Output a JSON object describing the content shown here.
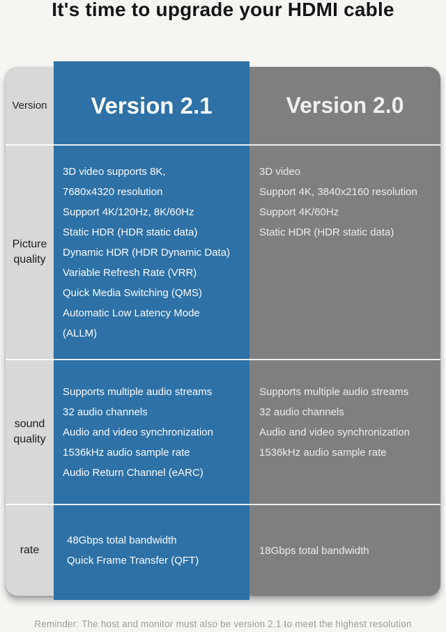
{
  "title": "It's time to upgrade your HDMI cable",
  "footer_note": "Reminder: The host and monitor must also be version 2.1 to meet the highest resolution",
  "colors": {
    "v21_blue": "#2d71a6",
    "v20_gray": "#7f7f7f",
    "label_column_gray": "#d8d8d8",
    "page_background": "#f6f5f2",
    "separator_white": "#ffffff",
    "footer_text": "#9b9b9b"
  },
  "table": {
    "header": {
      "label": "Version",
      "v21": "Version 2.1",
      "v20": "Version 2.0"
    },
    "rows": {
      "picture": {
        "label_lines": [
          "Picture",
          "quality"
        ],
        "v21_lines": [
          "3D video supports 8K,",
          "7680x4320 resolution",
          "Support 4K/120Hz, 8K/60Hz",
          "Static HDR (HDR static data)",
          "Dynamic HDR (HDR Dynamic Data)",
          "Variable Refresh Rate (VRR)",
          "Quick Media Switching (QMS)",
          "Automatic Low Latency Mode",
          "(ALLM)"
        ],
        "v20_lines": [
          "3D video",
          "Support 4K, 3840x2160 resolution",
          "Support 4K/60Hz",
          "Static HDR (HDR static data)"
        ]
      },
      "sound": {
        "label_lines": [
          "sound",
          "quality"
        ],
        "v21_lines": [
          "Supports multiple audio streams",
          "32 audio channels",
          "Audio and video synchronization",
          "1536kHz audio sample rate",
          "Audio Return Channel (eARC)"
        ],
        "v20_lines": [
          "Supports multiple audio streams",
          "32 audio channels",
          "Audio and video synchronization",
          "1536kHz audio sample rate"
        ]
      },
      "rate": {
        "label_lines": [
          "rate"
        ],
        "v21_lines": [
          "48Gbps total bandwidth",
          "Quick Frame Transfer (QFT)"
        ],
        "v20_lines": [
          "18Gbps total bandwidth"
        ]
      }
    }
  },
  "chart_data": {
    "type": "table",
    "title": "It's time to upgrade your HDMI cable",
    "columns": [
      "Version",
      "Version 2.1",
      "Version 2.0"
    ],
    "rows": [
      {
        "feature": "Picture quality",
        "version_2_1": "3D video supports 8K, 7680x4320 resolution; Support 4K/120Hz, 8K/60Hz; Static HDR (HDR static data); Dynamic HDR (HDR Dynamic Data); Variable Refresh Rate (VRR); Quick Media Switching (QMS); Automatic Low Latency Mode (ALLM)",
        "version_2_0": "3D video; Support 4K, 3840x2160 resolution; Support 4K/60Hz; Static HDR (HDR static data)"
      },
      {
        "feature": "sound quality",
        "version_2_1": "Supports multiple audio streams; 32 audio channels; Audio and video synchronization; 1536kHz audio sample rate; Audio Return Channel (eARC)",
        "version_2_0": "Supports multiple audio streams; 32 audio channels; Audio and video synchronization; 1536kHz audio sample rate"
      },
      {
        "feature": "rate",
        "version_2_1": "48Gbps total bandwidth; Quick Frame Transfer (QFT)",
        "version_2_0": "18Gbps total bandwidth"
      }
    ],
    "note": "Reminder: The host and monitor must also be version 2.1 to meet the highest resolution",
    "layout": {
      "highlight_column": "Version 2.1",
      "highlight_color": "#2d71a6",
      "secondary_color": "#7f7f7f"
    }
  }
}
